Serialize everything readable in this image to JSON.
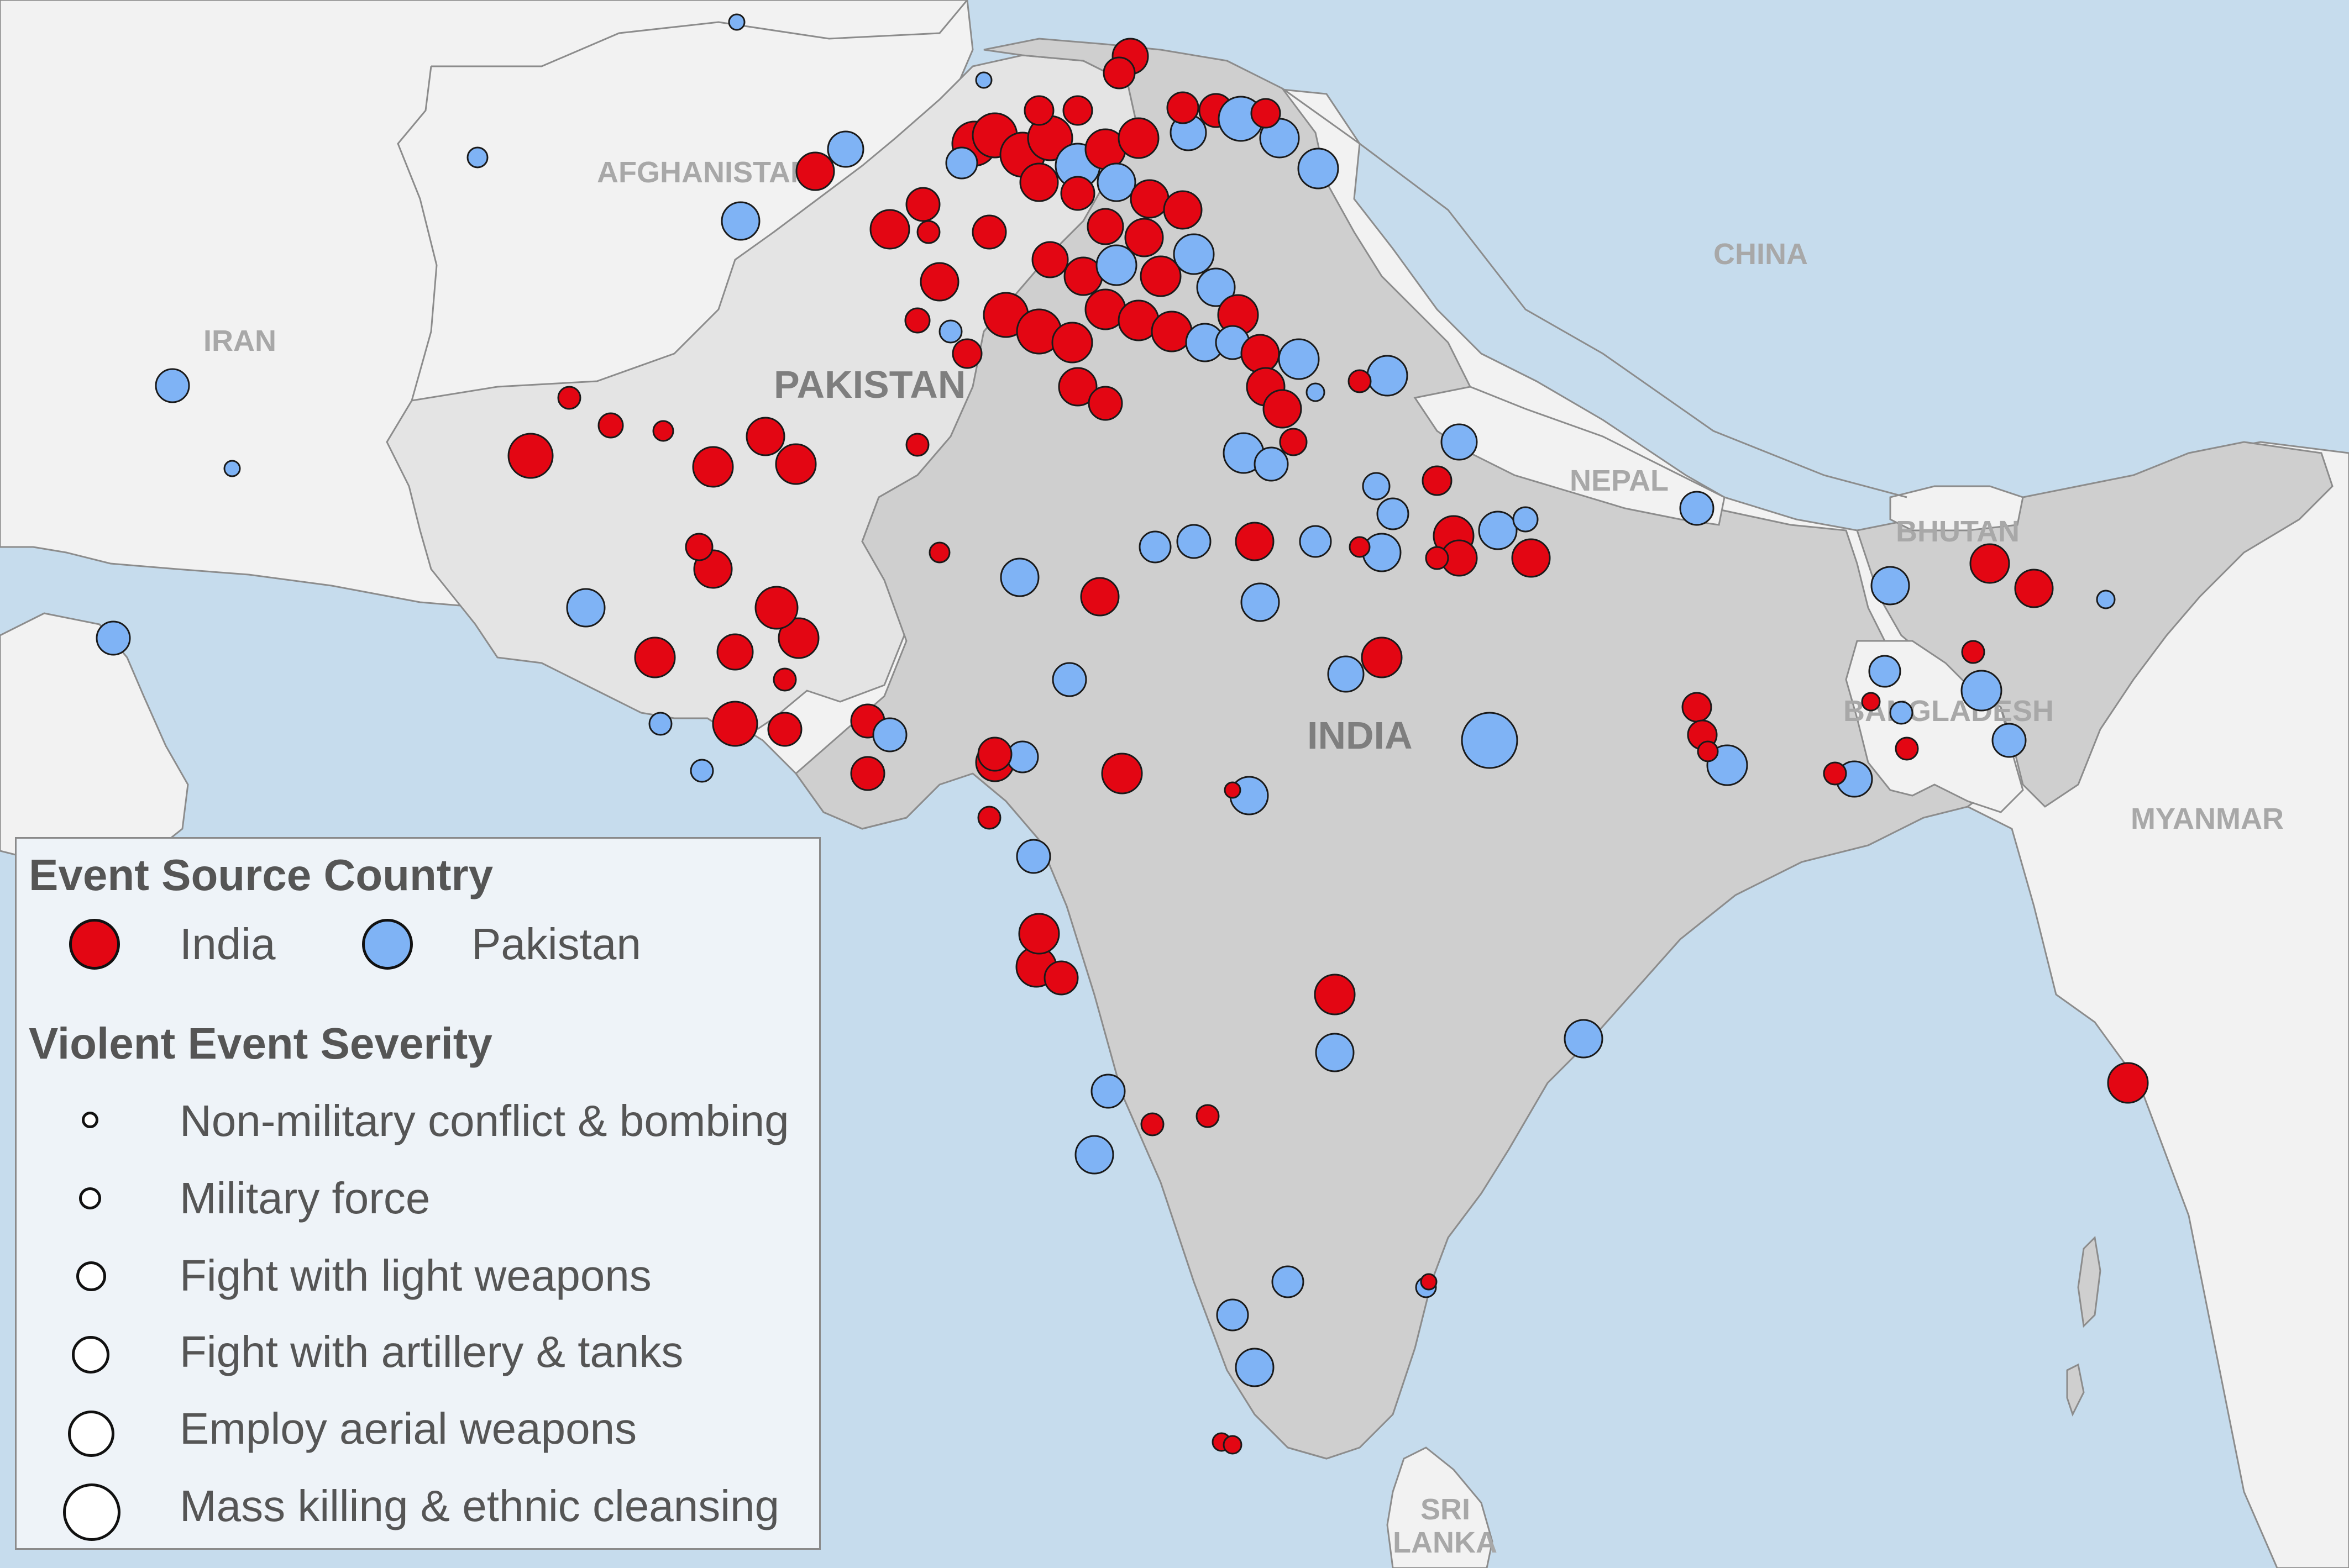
{
  "map": {
    "country_labels": {
      "afghanistan": "AFGHANISTAN",
      "iran": "IRAN",
      "china": "CHINA",
      "pakistan": "PAKISTAN",
      "nepal": "NEPAL",
      "bhutan": "BHUTAN",
      "india": "INDIA",
      "bangladesh": "BANGLADESH",
      "myanmar": "MYANMAR",
      "sri": "SRI",
      "lanka": "LANKA"
    },
    "colors": {
      "sea": "#c6dced",
      "land_other": "#f2f2f2",
      "land_pakistan": "#e4e4e4",
      "land_india": "#cfcfcf",
      "border": "#8c8c8c",
      "india_events": "#e30613",
      "pakistan_events": "#7fb3f5"
    }
  },
  "legend": {
    "source_title": "Event Source Country",
    "india_label": "India",
    "pakistan_label": "Pakistan",
    "severity_title": "Violent Event Severity",
    "severity_levels": [
      "Non-military conflict & bombing",
      "Military force",
      "Fight with light weapons",
      "Fight with artillery & tanks",
      "Employ aerial weapons",
      "Mass killing & ethnic cleansing"
    ]
  }
}
